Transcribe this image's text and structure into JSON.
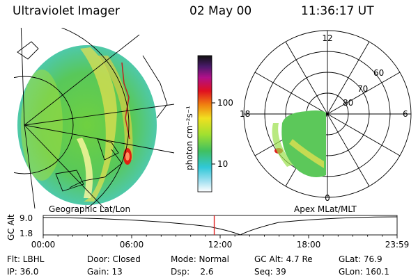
{
  "header": {
    "title": "Ultraviolet Imager",
    "date": "02 May 00",
    "time": "11:36:17 UT"
  },
  "colorbar": {
    "label": "photon cm⁻²s⁻¹",
    "ticks": [
      "100",
      "10"
    ]
  },
  "left_panel": {
    "caption": "Geographic Lat/Lon"
  },
  "right_panel": {
    "caption": "Apex MLat/MLT",
    "mlt_labels": [
      "12",
      "18",
      "6",
      "0"
    ],
    "lat_labels": [
      "60",
      "70",
      "80"
    ]
  },
  "altitude_plot": {
    "ylabel": "GC Alt",
    "yticks": [
      "9.0",
      "1.8"
    ],
    "xticks": [
      "00:00",
      "06:00",
      "12:00",
      "18:00",
      "23:59"
    ],
    "marker_hour": 11.6,
    "marker_color": "#e02020"
  },
  "info": {
    "row1": {
      "flt": "Flt: LBHL",
      "door": "Door: Closed",
      "mode": "Mode: Normal",
      "gcalt": "GC Alt: 4.7 Re",
      "glat": "GLat:  76.9"
    },
    "row2": {
      "ip": "IP: 36.0",
      "gain": "Gain: 13",
      "dsp": "Dsp:    2.6",
      "seq": "Seq: 39",
      "glon": "GLon: 160.1"
    }
  }
}
